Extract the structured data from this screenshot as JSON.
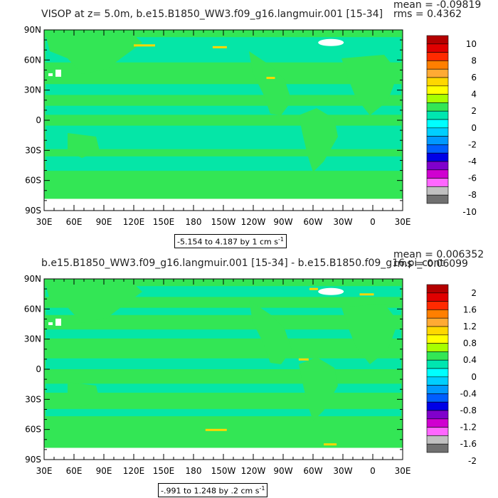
{
  "panels": [
    {
      "title": "VISOP at z=    5.0m, b.e15.B1850_WW3.f09_g16.langmuir.001 [15-34]",
      "mean": "mean = -0.09819",
      "rms": "rms = 0.4362",
      "range": "-5.154 to 4.187 by 1 cm s",
      "range_sup": "-1",
      "colorbar_labels": [
        "10",
        "8",
        "6",
        "4",
        "2",
        "0",
        "-2",
        "-4",
        "-6",
        "-8",
        "-10"
      ],
      "colorbar_colors": [
        "#b40000",
        "#e00000",
        "#ff2a00",
        "#ff7f00",
        "#ffaa33",
        "#ffd700",
        "#ffff00",
        "#a6ff00",
        "#33e655",
        "#00e6b0",
        "#00ffff",
        "#00cfff",
        "#0099ff",
        "#005eff",
        "#0000e6",
        "#8000cc",
        "#d000d0",
        "#ff66ff",
        "#c0c0c0",
        "#707070"
      ]
    },
    {
      "title": "b.e15.B1850_WW3.f09_g16.langmuir.001 [15-34] - b.e15.B1850.f09_g16.pi_cont",
      "mean": "mean = 0.006352",
      "rms": "rms = 0.06099",
      "range": "-.991 to 1.248 by .2 cm s",
      "range_sup": "-1",
      "colorbar_labels": [
        "2",
        "1.6",
        "1.2",
        "0.8",
        "0.4",
        "0",
        "-0.4",
        "-0.8",
        "-1.2",
        "-1.6",
        "-2"
      ],
      "colorbar_colors": [
        "#b40000",
        "#e00000",
        "#ff2a00",
        "#ff7f00",
        "#ffaa33",
        "#ffd700",
        "#ffff00",
        "#a6ff00",
        "#33e655",
        "#00e6b0",
        "#00ffff",
        "#00cfff",
        "#0099ff",
        "#005eff",
        "#0000e6",
        "#8000cc",
        "#d000d0",
        "#ff66ff",
        "#c0c0c0",
        "#707070"
      ]
    }
  ],
  "axes": {
    "lat_labels": [
      "90N",
      "60N",
      "30N",
      "0",
      "30S",
      "60S",
      "90S"
    ],
    "lon_labels": [
      "30E",
      "60E",
      "90E",
      "120E",
      "150E",
      "180",
      "150W",
      "120W",
      "90W",
      "60W",
      "30W",
      "0",
      "30E"
    ]
  },
  "map_colors": {
    "ocean_main": "#33e655",
    "ocean_alt": "#00e6b0",
    "land": "#33e655",
    "missing": "#ffffff",
    "positive_streak": "#ffd700"
  }
}
